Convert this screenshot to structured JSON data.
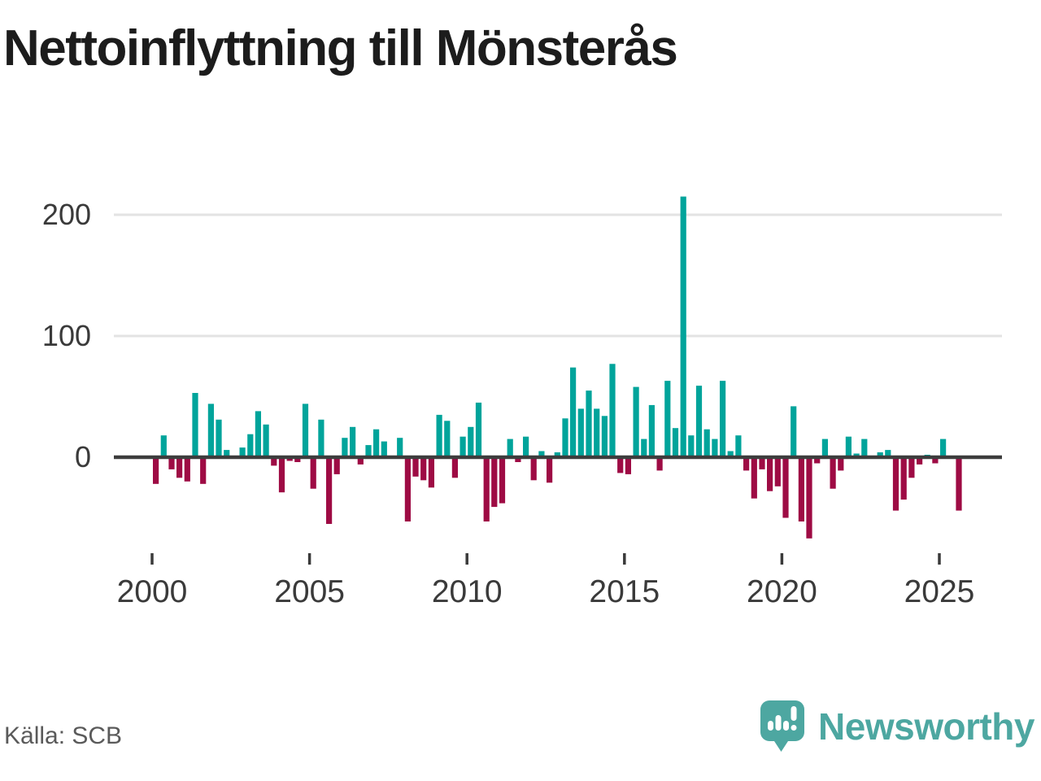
{
  "header": {
    "title": "Nettoinflyttning till Mönsterås"
  },
  "chart_data": {
    "type": "bar",
    "title": "Nettoinflyttning till Mönsterås",
    "period": "quarterly",
    "x": [
      "2000Q1",
      "2000Q2",
      "2000Q3",
      "2000Q4",
      "2001Q1",
      "2001Q2",
      "2001Q3",
      "2001Q4",
      "2002Q1",
      "2002Q2",
      "2002Q3",
      "2002Q4",
      "2003Q1",
      "2003Q2",
      "2003Q3",
      "2003Q4",
      "2004Q1",
      "2004Q2",
      "2004Q3",
      "2004Q4",
      "2005Q1",
      "2005Q2",
      "2005Q3",
      "2005Q4",
      "2006Q1",
      "2006Q2",
      "2006Q3",
      "2006Q4",
      "2007Q1",
      "2007Q2",
      "2007Q3",
      "2007Q4",
      "2008Q1",
      "2008Q2",
      "2008Q3",
      "2008Q4",
      "2009Q1",
      "2009Q2",
      "2009Q3",
      "2009Q4",
      "2010Q1",
      "2010Q2",
      "2010Q3",
      "2010Q4",
      "2011Q1",
      "2011Q2",
      "2011Q3",
      "2011Q4",
      "2012Q1",
      "2012Q2",
      "2012Q3",
      "2012Q4",
      "2013Q1",
      "2013Q2",
      "2013Q3",
      "2013Q4",
      "2014Q1",
      "2014Q2",
      "2014Q3",
      "2014Q4",
      "2015Q1",
      "2015Q2",
      "2015Q3",
      "2015Q4",
      "2016Q1",
      "2016Q2",
      "2016Q3",
      "2016Q4",
      "2017Q1",
      "2017Q2",
      "2017Q3",
      "2017Q4",
      "2018Q1",
      "2018Q2",
      "2018Q3",
      "2018Q4",
      "2019Q1",
      "2019Q2",
      "2019Q3",
      "2019Q4",
      "2020Q1",
      "2020Q2",
      "2020Q3",
      "2020Q4",
      "2021Q1",
      "2021Q2",
      "2021Q3",
      "2021Q4",
      "2022Q1",
      "2022Q2",
      "2022Q3",
      "2022Q4",
      "2023Q1",
      "2023Q2",
      "2023Q3",
      "2023Q4",
      "2024Q1",
      "2024Q2",
      "2024Q3",
      "2024Q4",
      "2025Q1",
      "2025Q2",
      "2025Q3"
    ],
    "values": [
      -22,
      18,
      -10,
      -17,
      -20,
      53,
      -22,
      44,
      31,
      6,
      0,
      8,
      19,
      38,
      27,
      -7,
      -29,
      -3,
      -4,
      44,
      -26,
      31,
      -55,
      -14,
      16,
      25,
      -6,
      10,
      23,
      13,
      0,
      16,
      -53,
      -16,
      -19,
      -25,
      35,
      30,
      -17,
      17,
      25,
      45,
      -53,
      -41,
      -38,
      15,
      -4,
      17,
      -19,
      5,
      -21,
      4,
      32,
      74,
      40,
      55,
      40,
      34,
      77,
      -13,
      -14,
      58,
      15,
      43,
      -11,
      63,
      24,
      215,
      18,
      59,
      23,
      15,
      63,
      5,
      18,
      -11,
      -34,
      -10,
      -28,
      -24,
      -50,
      42,
      -53,
      -67,
      -5,
      15,
      -26,
      -11,
      17,
      3,
      15,
      0,
      4,
      6,
      -44,
      -35,
      -17,
      -6,
      2,
      -5,
      15,
      0,
      -44
    ],
    "y_ticks": [
      0,
      100,
      200
    ],
    "x_tick_labels": [
      "2000",
      "2005",
      "2010",
      "2015",
      "2020",
      "2025"
    ],
    "x_tick_years": [
      2000,
      2005,
      2010,
      2015,
      2020,
      2025
    ],
    "ylim": [
      -80,
      230
    ],
    "grid": "horizontal",
    "legend": "none",
    "positive_color": "#00a49b",
    "negative_color": "#9e0b44",
    "axis_color": "#3d3d3d",
    "grid_color": "#e3e3e3",
    "tick_label_color": "#3a3a3a"
  },
  "footer": {
    "source": "Källa: SCB",
    "brand": "Newsworthy",
    "brand_color": "#4da7a1"
  }
}
